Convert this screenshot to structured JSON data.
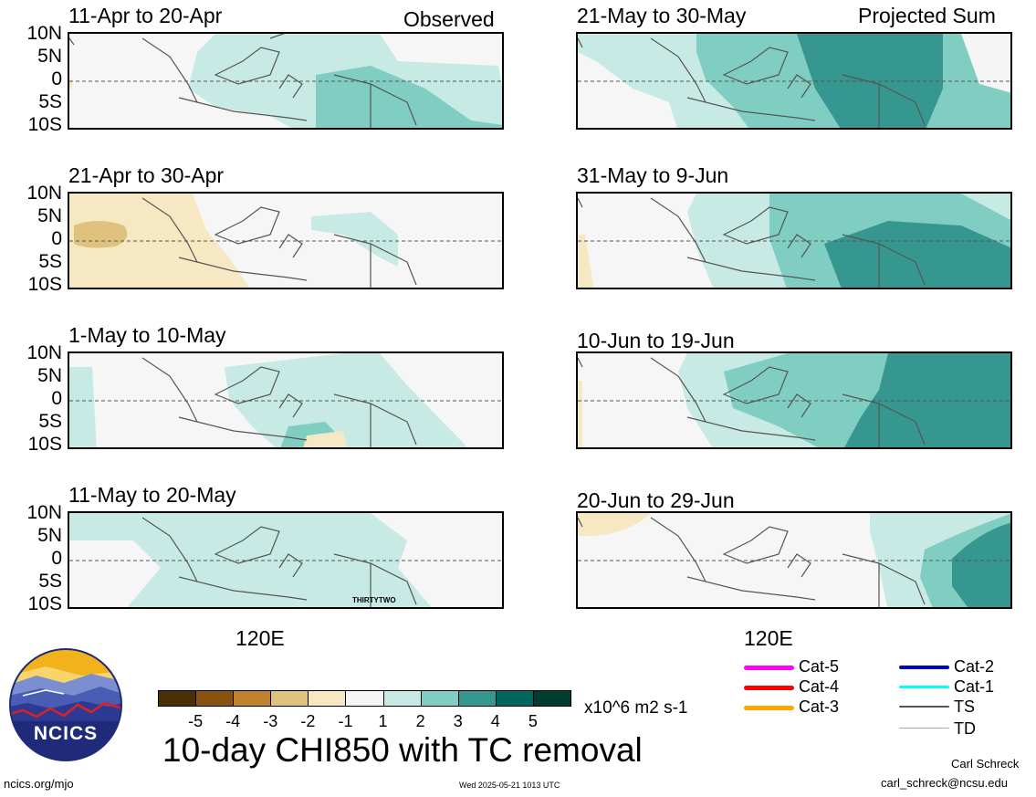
{
  "panels_left": [
    {
      "title": "11-Apr to 20-Apr",
      "corner": "Observed"
    },
    {
      "title": "21-Apr to 30-Apr",
      "corner": ""
    },
    {
      "title": "1-May to 10-May",
      "corner": ""
    },
    {
      "title": "11-May to 20-May",
      "corner": ""
    }
  ],
  "panels_right": [
    {
      "title": "21-May to 30-May",
      "corner": "Projected Sum"
    },
    {
      "title": "31-May to 9-Jun",
      "corner": ""
    },
    {
      "title": "10-Jun to 19-Jun",
      "corner": ""
    },
    {
      "title": "20-Jun to 29-Jun",
      "corner": ""
    }
  ],
  "lat_labels": [
    "10N",
    "5N",
    "0",
    "5S",
    "10S"
  ],
  "lon_label": "120E",
  "tc_label": "THIRTYTWO",
  "colorbar": {
    "colors": [
      "#4a2f07",
      "#8a520f",
      "#bf812d",
      "#dfc27d",
      "#f6e8c3",
      "#f5f5f5",
      "#c7eae5",
      "#80cdc1",
      "#35978f",
      "#01665e",
      "#003c30"
    ],
    "ticks": [
      "-5",
      "-4",
      "-3",
      "-2",
      "-1",
      "1",
      "2",
      "3",
      "4",
      "5"
    ],
    "units": "x10^6 m2 s-1"
  },
  "legend": [
    {
      "label": "Cat-5",
      "color": "#ff00ff"
    },
    {
      "label": "Cat-4",
      "color": "#ff0000"
    },
    {
      "label": "Cat-3",
      "color": "#ffa500"
    },
    {
      "label": "Cat-2",
      "color": "#0000cd"
    },
    {
      "label": "Cat-1",
      "color": "#00ffff"
    },
    {
      "label": "TS",
      "color": "#555555"
    },
    {
      "label": "TD",
      "color": "#aaaaaa"
    }
  ],
  "logo_text": "NCICS",
  "main_title": "10-day CHI850 with TC removal",
  "author": "Carl Schreck",
  "email": "carl_schreck@ncsu.edu",
  "url": "ncics.org/mjo",
  "timestamp": "Wed 2025-05-21 1013 UTC"
}
